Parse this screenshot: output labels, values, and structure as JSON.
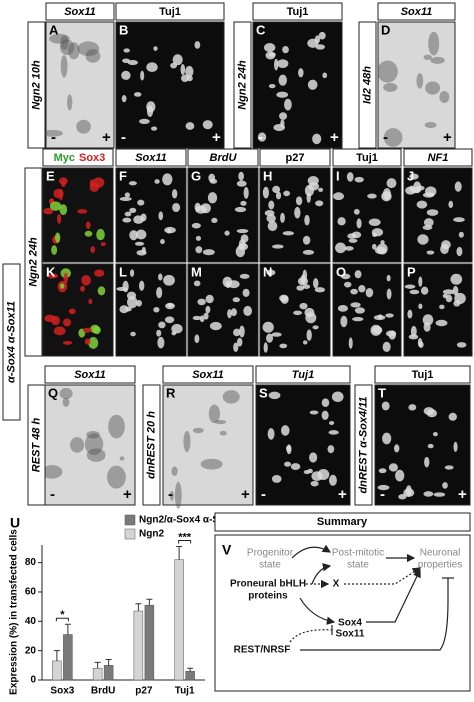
{
  "panels": [
    {
      "letter": "A",
      "header": "Sox11",
      "minus": "-",
      "plus": "+"
    },
    {
      "letter": "B",
      "header": "Tuj1",
      "minus": "-",
      "plus": "+"
    },
    {
      "letter": "C",
      "header": "Tuj1",
      "minus": "-",
      "plus": "+"
    },
    {
      "letter": "D",
      "header": "Sox11",
      "minus": "-",
      "plus": "+"
    },
    {
      "letter": "E",
      "header": "Myc",
      "header2": "Sox3"
    },
    {
      "letter": "F",
      "header": "Sox11"
    },
    {
      "letter": "G",
      "header": "BrdU"
    },
    {
      "letter": "H",
      "header": "p27"
    },
    {
      "letter": "I",
      "header": "Tuj1"
    },
    {
      "letter": "J",
      "header": "NF1"
    },
    {
      "letter": "K"
    },
    {
      "letter": "L"
    },
    {
      "letter": "M"
    },
    {
      "letter": "N"
    },
    {
      "letter": "O"
    },
    {
      "letter": "P"
    },
    {
      "letter": "Q",
      "header": "Sox11",
      "minus": "-",
      "plus": "+"
    },
    {
      "letter": "R",
      "header": "Sox11",
      "minus": "-",
      "plus": "+"
    },
    {
      "letter": "S",
      "header": "Tuj1",
      "minus": "-",
      "plus": "+"
    },
    {
      "letter": "T",
      "header": "Tuj1",
      "minus": "-",
      "plus": "+"
    }
  ],
  "side_labels": [
    "Ngn2 10h",
    "Ngn2 24h",
    "Id2 48h",
    "Ngn2 24h",
    "α-Sox4 α-Sox11",
    "REST 48 h",
    "dnREST 20 h",
    "dnREST α-Sox4/11"
  ],
  "chart_data": {
    "type": "bar",
    "panel_letter": "U",
    "y_label": "Expression (%) in transfected cells",
    "categories": [
      "Sox3",
      "BrdU",
      "p27",
      "Tuj1"
    ],
    "series": [
      {
        "name": "Ngn2/α-Sox4 α-Sox11",
        "color": "#7a7a7a",
        "values": [
          31,
          10,
          51,
          6
        ],
        "errors": [
          7,
          4,
          4,
          2
        ]
      },
      {
        "name": "Ngn2",
        "color": "#d4d4d4",
        "values": [
          13,
          8,
          47,
          82
        ],
        "errors": [
          7,
          4,
          5,
          9
        ]
      }
    ],
    "annotations": [
      "*",
      "***"
    ],
    "ylim": [
      0,
      92
    ],
    "yticks": [
      0,
      20,
      40,
      60,
      80
    ]
  },
  "summary": {
    "title": "Summary",
    "letter": "V",
    "progenitor": [
      "Progenitor",
      "state"
    ],
    "postmitotic": [
      "Post-mitotic",
      "state"
    ],
    "neuronal": [
      "Neuronal",
      "properties"
    ],
    "bhlh": [
      "Proneural bHLH",
      "proteins"
    ],
    "x": "X",
    "sox4": "Sox4",
    "sox11": "Sox11",
    "rest": "REST/NRSF"
  }
}
